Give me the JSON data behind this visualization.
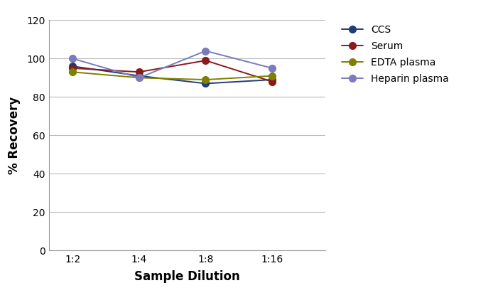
{
  "x_labels": [
    "1:2",
    "1:4",
    "1:8",
    "1:16"
  ],
  "x_positions": [
    0,
    1,
    2,
    3
  ],
  "series": [
    {
      "label": "CCS",
      "color": "#1f3d7a",
      "values": [
        96,
        91,
        87,
        89
      ]
    },
    {
      "label": "Serum",
      "color": "#8b1a1a",
      "values": [
        95,
        93,
        99,
        88
      ]
    },
    {
      "label": "EDTA plasma",
      "color": "#808000",
      "values": [
        93,
        90,
        89,
        91
      ]
    },
    {
      "label": "Heparin plasma",
      "color": "#7b7bbd",
      "values": [
        100,
        90,
        104,
        95
      ]
    }
  ],
  "xlabel": "Sample Dilution",
  "ylabel": "% Recovery",
  "ylim": [
    0,
    120
  ],
  "yticks": [
    0,
    20,
    40,
    60,
    80,
    100,
    120
  ],
  "bg_color": "#ffffff",
  "plot_bg": "#ffffff",
  "grid_color": "#bbbbbb",
  "axis_fontsize": 12,
  "tick_fontsize": 10,
  "legend_fontsize": 10,
  "line_width": 1.4,
  "marker_size": 7,
  "xlim_left": -0.35,
  "xlim_right": 3.8
}
